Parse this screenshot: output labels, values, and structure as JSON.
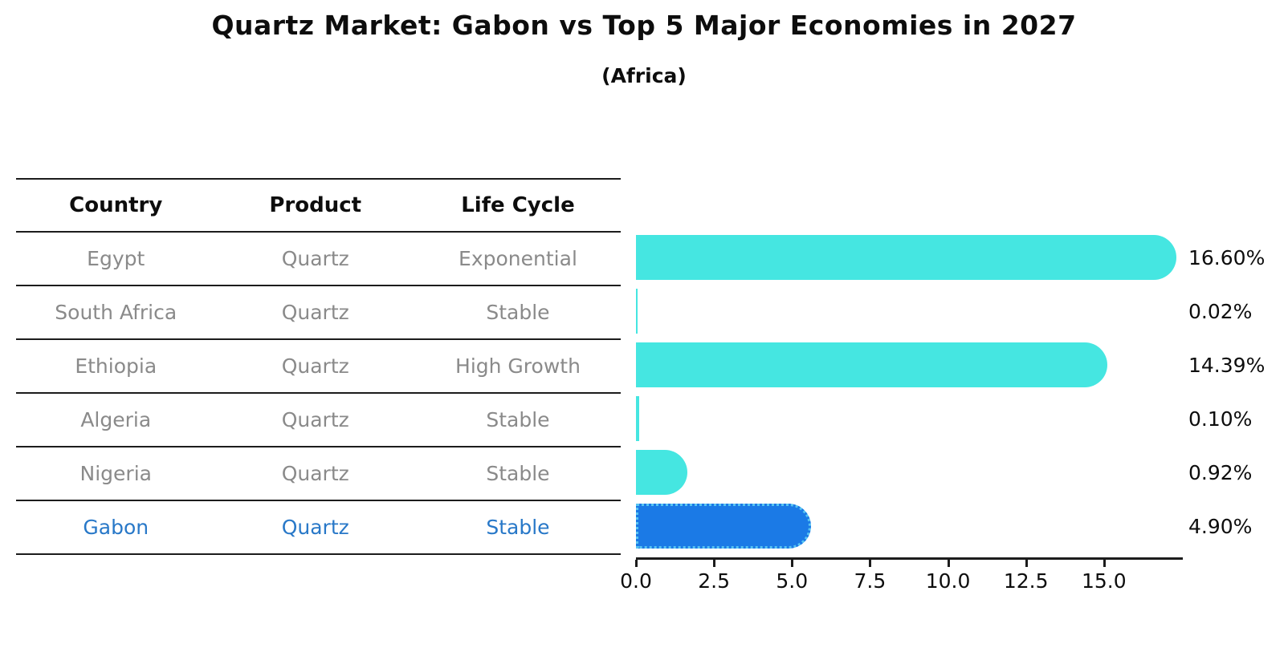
{
  "chart_data": {
    "type": "bar",
    "orientation": "horizontal",
    "title": "Quartz Market: Gabon vs Top 5 Major Economies in 2027",
    "subtitle": "(Africa)",
    "table_headers": [
      "Country",
      "Product",
      "Life Cycle"
    ],
    "rows": [
      {
        "country": "Egypt",
        "product": "Quartz",
        "life_cycle": "Exponential",
        "value": 16.6,
        "label": "16.60%",
        "highlight": false
      },
      {
        "country": "South Africa",
        "product": "Quartz",
        "life_cycle": "Stable",
        "value": 0.02,
        "label": "0.02%",
        "highlight": false
      },
      {
        "country": "Ethiopia",
        "product": "Quartz",
        "life_cycle": "High Growth",
        "value": 14.39,
        "label": "14.39%",
        "highlight": false
      },
      {
        "country": "Algeria",
        "product": "Quartz",
        "life_cycle": "Stable",
        "value": 0.1,
        "label": "0.10%",
        "highlight": false
      },
      {
        "country": "Nigeria",
        "product": "Quartz",
        "life_cycle": "Stable",
        "value": 0.92,
        "label": "0.92%",
        "highlight": false
      },
      {
        "country": "Gabon",
        "product": "Quartz",
        "life_cycle": "Stable",
        "value": 4.9,
        "label": "4.90%",
        "highlight": true
      }
    ],
    "x_ticks": [
      "0.0",
      "2.5",
      "5.0",
      "7.5",
      "10.0",
      "12.5",
      "15.0"
    ],
    "xlim": [
      0,
      17.5
    ],
    "legend": "none",
    "grid": false,
    "colors": {
      "bar": "#45E6E1",
      "highlight_bar": "#1B7AE6",
      "highlight_border": "#58C4F2",
      "highlight_text": "#2878C8",
      "row_text": "#8A8A8A",
      "axis": "#1C1C1C"
    }
  }
}
